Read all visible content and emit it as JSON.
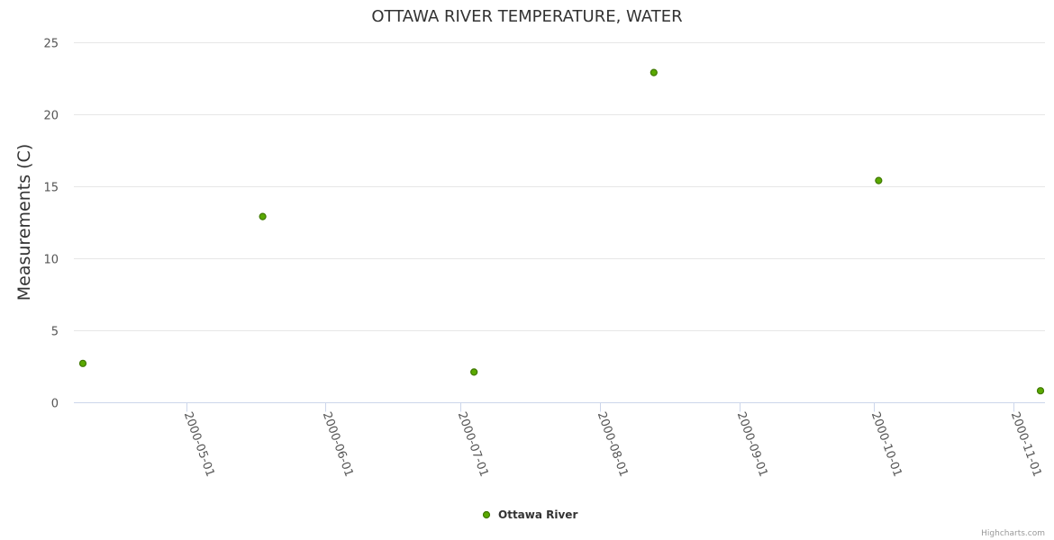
{
  "chart_data": {
    "type": "scatter",
    "title": "OTTAWA RIVER TEMPERATURE, WATER",
    "xlabel": "",
    "ylabel": "Measurements (C)",
    "ylim": [
      0,
      25
    ],
    "yticks": [
      0,
      5,
      10,
      15,
      20,
      25
    ],
    "xlim": [
      "2000-04-06",
      "2000-11-08"
    ],
    "xticks": [
      "2000-05-01",
      "2000-06-01",
      "2000-07-01",
      "2000-08-01",
      "2000-09-01",
      "2000-10-01",
      "2000-11-01"
    ],
    "series": [
      {
        "name": "Ottawa River",
        "color": "#5aa900",
        "points": [
          {
            "x": "2000-04-08",
            "y": 2.7
          },
          {
            "x": "2000-05-18",
            "y": 12.9
          },
          {
            "x": "2000-07-04",
            "y": 2.1
          },
          {
            "x": "2000-08-13",
            "y": 22.9
          },
          {
            "x": "2000-10-02",
            "y": 15.4
          },
          {
            "x": "2000-11-07",
            "y": 0.8
          }
        ]
      }
    ],
    "legend": "bottom-center"
  },
  "credits": "Highcharts.com"
}
